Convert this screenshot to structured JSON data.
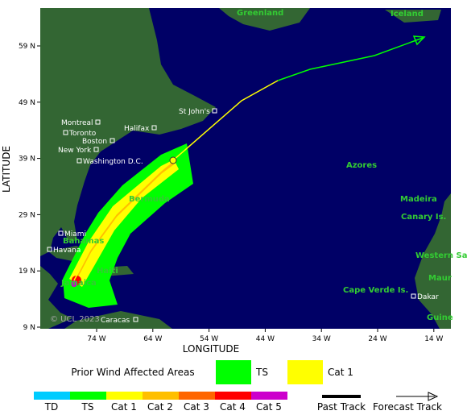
{
  "map": {
    "lat_ticks": [
      "59 N",
      "49 N",
      "39 N",
      "29 N",
      "19 N",
      "9 N"
    ],
    "lon_ticks": [
      "74 W",
      "64 W",
      "54 W",
      "44 W",
      "34 W",
      "24 W",
      "14 W"
    ],
    "x_label": "LONGITUDE",
    "y_label": "LATITUDE",
    "cities": [
      "St John's",
      "Montreal",
      "Toronto",
      "Halifax",
      "Boston",
      "New York",
      "Washington D.C.",
      "Miami",
      "Havana",
      "Caracas",
      "Dakar"
    ],
    "places": [
      "Greenland",
      "Iceland",
      "Bermuda",
      "Azores",
      "Madeira",
      "Canary Is.",
      "Bahamas",
      "Haiti",
      "Jamaica",
      "Western Sah",
      "Maur",
      "Cape Verde Is.",
      "Guine"
    ],
    "copyright": "© UCL 2023"
  },
  "legend": {
    "prior_title": "Prior Wind Affected Areas",
    "prior_items": [
      "TS",
      "Cat 1"
    ],
    "scale": [
      "TD",
      "TS",
      "Cat 1",
      "Cat 2",
      "Cat 3",
      "Cat 4",
      "Cat 5"
    ],
    "past_track": "Past Track",
    "forecast_track": "Forecast Track"
  }
}
